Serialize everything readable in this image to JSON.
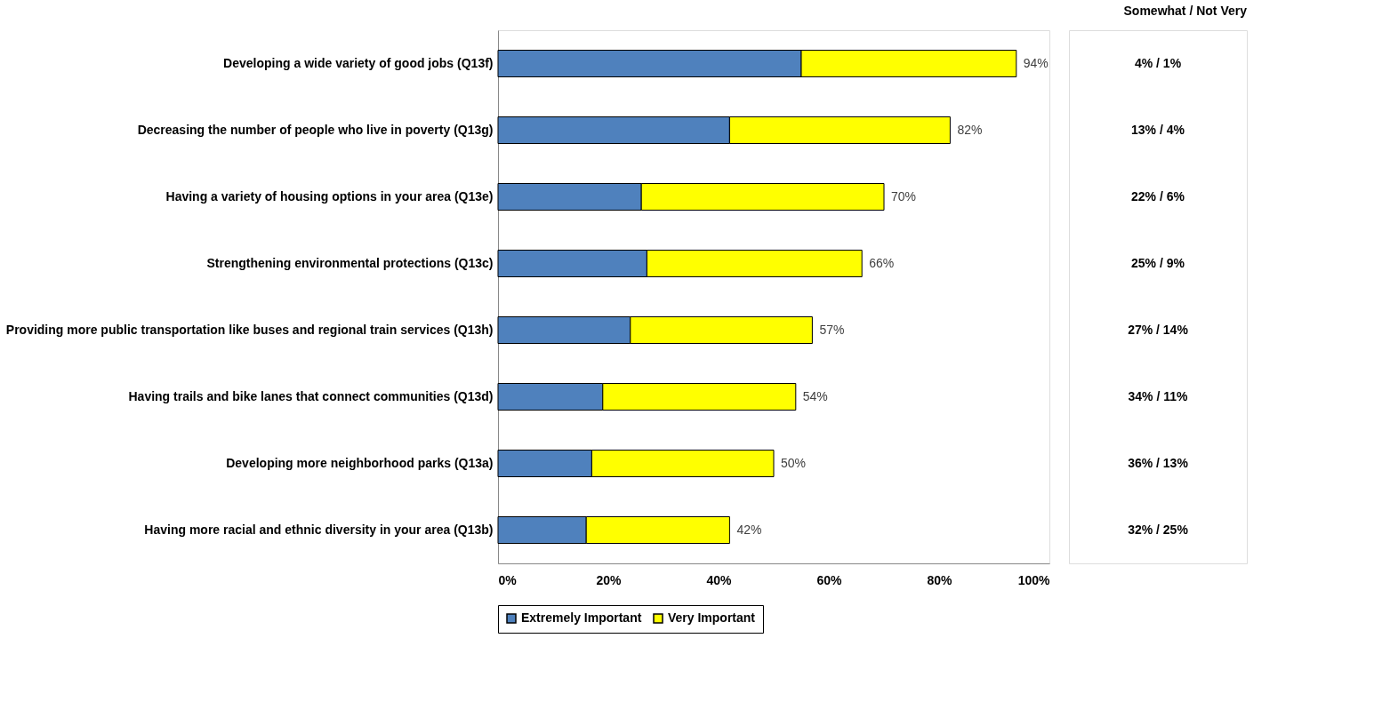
{
  "chart_data": {
    "type": "bar",
    "orientation": "horizontal",
    "stacked": true,
    "categories": [
      "Developing a wide variety of good jobs (Q13f)",
      "Decreasing the number of people who live in poverty (Q13g)",
      "Having a variety of housing options in your area (Q13e)",
      "Strengthening environmental protections (Q13c)",
      "Providing more public transportation like buses and regional train services (Q13h)",
      "Having trails and bike lanes that connect communities (Q13d)",
      "Developing more neighborhood parks (Q13a)",
      "Having more racial and ethnic diversity in your area (Q13b)"
    ],
    "series": [
      {
        "name": "Extremely Important",
        "color": "#4f81bd",
        "values": [
          55,
          42,
          26,
          27,
          24,
          19,
          17,
          16
        ]
      },
      {
        "name": "Very Important",
        "color": "#ffff00",
        "values": [
          39,
          40,
          44,
          39,
          33,
          35,
          33,
          26
        ]
      }
    ],
    "totals": [
      "94%",
      "82%",
      "70%",
      "66%",
      "57%",
      "54%",
      "50%",
      "42%"
    ],
    "xlim": [
      0,
      100
    ],
    "xticks": [
      {
        "value": 0,
        "label": "0%"
      },
      {
        "value": 20,
        "label": "20%"
      },
      {
        "value": 40,
        "label": "40%"
      },
      {
        "value": 60,
        "label": "60%"
      },
      {
        "value": 80,
        "label": "80%"
      },
      {
        "value": 100,
        "label": "100%"
      }
    ],
    "annotations": [
      "Somewhat  / Not Very",
      "4% / 1%",
      "13% / 4%",
      "22% / 6%",
      "25% / 9%",
      "27% / 14%",
      "34% / 11%",
      "36% / 13%",
      "32% / 25%"
    ],
    "legend": "bottom",
    "grid": false
  }
}
